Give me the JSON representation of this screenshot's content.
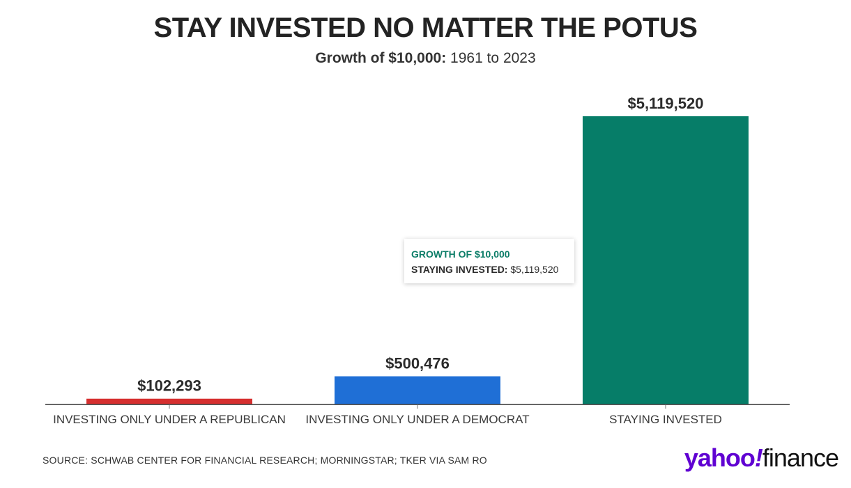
{
  "chart_data": {
    "type": "bar",
    "title": "STAY INVESTED NO MATTER THE POTUS",
    "subtitle_bold": "Growth of $10,000:",
    "subtitle_rest": "1961 to 2023",
    "categories": [
      "INVESTING ONLY UNDER A REPUBLICAN",
      "INVESTING ONLY UNDER A DEMOCRAT",
      "STAYING INVESTED"
    ],
    "values": [
      102293,
      500476,
      5119520
    ],
    "value_labels": [
      "$102,293",
      "$500,476",
      "$5,119,520"
    ],
    "colors": [
      "#d62f2f",
      "#1f6fd6",
      "#067d68"
    ],
    "ylim": [
      0,
      5119520
    ],
    "grid": false,
    "legend": "none"
  },
  "tooltip": {
    "title": "GROWTH OF $10,000",
    "label": "STAYING INVESTED:",
    "value": "$5,119,520"
  },
  "source": "SOURCE: SCHWAB CENTER FOR FINANCIAL RESEARCH; MORNINGSTAR; TKER VIA SAM RO",
  "logo": {
    "yahoo": "yahoo",
    "slash": "!",
    "finance": "finance"
  }
}
